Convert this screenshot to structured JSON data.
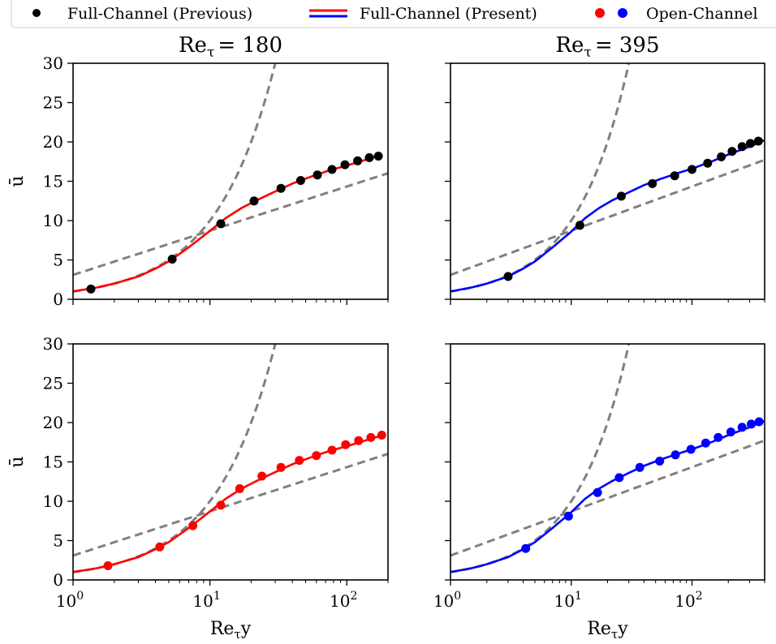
{
  "legend": {
    "placement": "top, spanning width",
    "entries": [
      {
        "label": "Full-Channel (Previous)",
        "marker": "dot",
        "colors": [
          "#000000"
        ]
      },
      {
        "label": "Full-Channel (Present)",
        "marker": "lines",
        "colors": [
          "#ff0000",
          "#0000ff"
        ]
      },
      {
        "label": "Open-Channel",
        "marker": "dots",
        "colors": [
          "#ff0000",
          "#0000ff"
        ]
      }
    ]
  },
  "colors": {
    "red": "#ff0000",
    "blue": "#0000ff",
    "black": "#000000",
    "reference": "#808080"
  },
  "chart_data": [
    {
      "type": "line",
      "title": "Re_τ = 180",
      "xscale": "log",
      "xlim": [
        1,
        200
      ],
      "ylim": [
        0,
        30
      ],
      "xlabel": "",
      "ylabel": "ū",
      "line_color": "#ff0000",
      "marker_color": "#000000",
      "points_x": [
        1.35,
        5.3,
        12.0,
        21.0,
        33.0,
        46.0,
        61.0,
        78.0,
        97.0,
        120.0,
        146.0,
        170.0
      ],
      "points_y": [
        1.3,
        5.1,
        9.6,
        12.5,
        14.1,
        15.1,
        15.8,
        16.5,
        17.1,
        17.6,
        18.0,
        18.2
      ],
      "line_x": [
        1,
        1.5,
        2,
        3,
        4,
        5,
        7,
        10,
        13,
        17,
        22,
        30,
        40,
        55,
        75,
        100,
        130,
        160,
        180
      ],
      "line_y": [
        1.0,
        1.5,
        2.0,
        2.9,
        3.9,
        4.8,
        6.6,
        8.7,
        10.3,
        11.6,
        12.6,
        13.7,
        14.7,
        15.6,
        16.4,
        17.0,
        17.6,
        18.1,
        18.3
      ]
    },
    {
      "type": "line",
      "title": "Re_τ = 395",
      "xscale": "log",
      "xlim": [
        1,
        400
      ],
      "ylim": [
        0,
        30
      ],
      "xlabel": "",
      "ylabel": "",
      "line_color": "#0000ff",
      "marker_color": "#000000",
      "points_x": [
        3.0,
        11.8,
        26.0,
        47.0,
        72.0,
        100.0,
        135.0,
        175.0,
        215.0,
        260.0,
        305.0,
        355.0
      ],
      "points_y": [
        2.9,
        9.4,
        13.1,
        14.7,
        15.7,
        16.5,
        17.3,
        18.1,
        18.8,
        19.4,
        19.8,
        20.1
      ],
      "line_x": [
        1,
        1.5,
        2,
        3,
        4,
        5,
        7,
        10,
        13,
        17,
        22,
        30,
        40,
        55,
        75,
        100,
        150,
        200,
        300,
        395
      ],
      "line_y": [
        1.0,
        1.5,
        2.0,
        2.9,
        3.9,
        4.8,
        6.6,
        8.6,
        10.3,
        11.6,
        12.6,
        13.6,
        14.5,
        15.3,
        16.0,
        16.6,
        17.6,
        18.4,
        19.4,
        20.2
      ]
    },
    {
      "type": "line",
      "title": "",
      "xscale": "log",
      "xlim": [
        1,
        200
      ],
      "ylim": [
        0,
        30
      ],
      "xlabel": "Re_τ y",
      "ylabel": "ū",
      "line_color": "#ff0000",
      "marker_color": "#ff0000",
      "points_x": [
        1.8,
        4.3,
        7.5,
        12.0,
        16.5,
        24.0,
        33.0,
        45.0,
        60.0,
        78.0,
        98.0,
        122.0,
        150.0,
        180.0
      ],
      "points_y": [
        1.8,
        4.2,
        6.9,
        9.5,
        11.6,
        13.2,
        14.3,
        15.2,
        15.8,
        16.5,
        17.2,
        17.7,
        18.1,
        18.4
      ],
      "line_x": [
        1,
        1.5,
        2,
        3,
        4,
        5,
        7,
        10,
        13,
        17,
        22,
        30,
        40,
        55,
        75,
        100,
        130,
        160,
        180
      ],
      "line_y": [
        1.0,
        1.5,
        2.0,
        2.9,
        3.9,
        4.8,
        6.6,
        8.7,
        10.3,
        11.6,
        12.6,
        13.7,
        14.7,
        15.6,
        16.4,
        17.0,
        17.6,
        18.1,
        18.3
      ]
    },
    {
      "type": "line",
      "title": "",
      "xscale": "log",
      "xlim": [
        1,
        400
      ],
      "ylim": [
        0,
        30
      ],
      "xlabel": "Re_τ y",
      "ylabel": "",
      "line_color": "#0000ff",
      "marker_color": "#0000ff",
      "points_x": [
        4.2,
        9.5,
        16.5,
        25.0,
        37.0,
        54.0,
        73.0,
        98.0,
        130.0,
        165.0,
        210.0,
        260.0,
        310.0,
        360.0
      ],
      "points_y": [
        4.0,
        8.1,
        11.1,
        13.0,
        14.3,
        15.1,
        15.9,
        16.6,
        17.4,
        18.1,
        18.8,
        19.4,
        19.8,
        20.1
      ],
      "line_x": [
        1,
        1.5,
        2,
        3,
        4,
        5,
        7,
        10,
        13,
        17,
        22,
        30,
        40,
        55,
        75,
        100,
        150,
        200,
        300,
        395
      ],
      "line_y": [
        1.0,
        1.5,
        2.0,
        2.9,
        3.9,
        4.8,
        6.6,
        8.6,
        10.3,
        11.6,
        12.6,
        13.6,
        14.5,
        15.3,
        16.0,
        16.6,
        17.6,
        18.4,
        19.4,
        20.2
      ]
    }
  ],
  "axes": {
    "y_ticks": [
      0,
      5,
      10,
      15,
      20,
      25,
      30
    ],
    "x_tick_labels": [
      {
        "value": 1,
        "base": "10",
        "exp": "0"
      },
      {
        "value": 10,
        "base": "10",
        "exp": "1"
      },
      {
        "value": 100,
        "base": "10",
        "exp": "2"
      }
    ],
    "xlabel_main": "Re",
    "xlabel_sub": "τ",
    "xlabel_tail": "y",
    "ylabel": "ū",
    "title_prefix": "Re",
    "title_sub": "τ",
    "titles": [
      "= 180",
      "= 395"
    ]
  }
}
